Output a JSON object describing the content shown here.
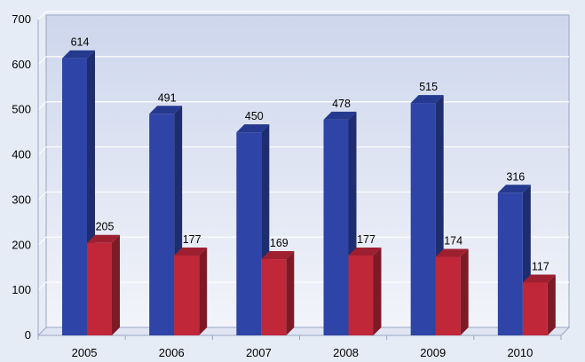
{
  "chart_data": {
    "type": "bar",
    "title": "",
    "xlabel": "",
    "ylabel": "",
    "categories": [
      "2005",
      "2006",
      "2007",
      "2008",
      "2009",
      "2010"
    ],
    "series": [
      {
        "values": [
          614,
          491,
          450,
          478,
          515,
          316
        ]
      },
      {
        "values": [
          205,
          177,
          169,
          177,
          174,
          117
        ]
      }
    ],
    "ylim": [
      0,
      700
    ],
    "yticks": [
      0,
      100,
      200,
      300,
      400,
      500,
      600,
      700
    ],
    "grid": true,
    "bar_style": "3d",
    "colors": {
      "series_0_front": "#2e44a6",
      "series_0_side": "#1e2d70",
      "series_0_top": "#253a8f",
      "series_1_front": "#c0283a",
      "series_1_side": "#7e1a26",
      "series_1_top": "#9e2030",
      "wall_top": "#cdd6ec",
      "wall_bottom": "#f2f4fa",
      "gridline": "#ffffff",
      "axis": "#9aa6c2"
    }
  }
}
